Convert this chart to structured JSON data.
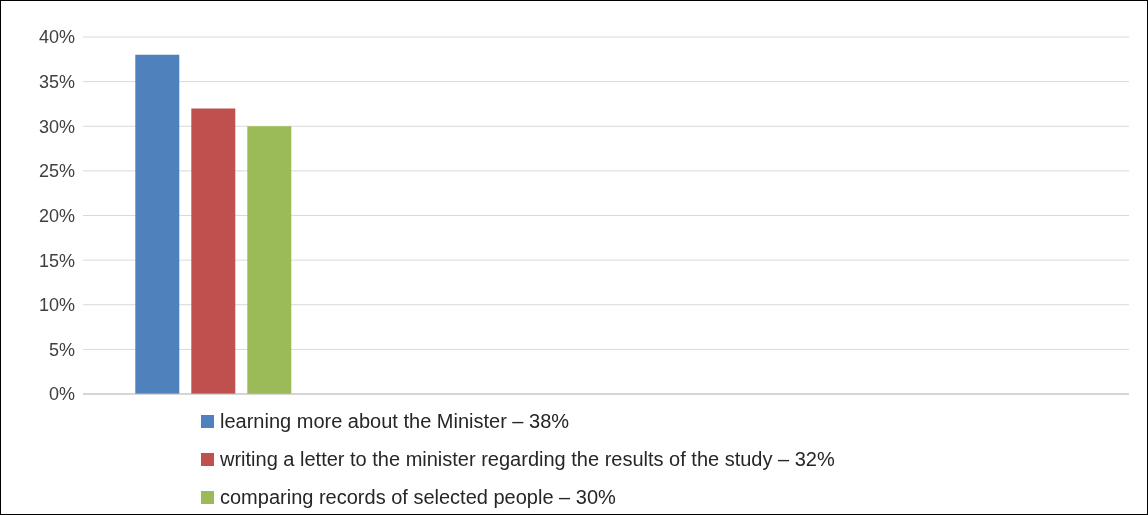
{
  "chart_data": {
    "type": "bar",
    "categories": [
      null,
      null,
      null,
      null
    ],
    "series": [
      {
        "name": "learning more about the Minister – 38%",
        "color": "#4f81bd",
        "values": [
          38,
          null,
          null,
          null
        ]
      },
      {
        "name": "writing a letter to the minister regarding the results of the study – 32%",
        "color": "#c0504d",
        "values": [
          32,
          null,
          null,
          null
        ]
      },
      {
        "name": "comparing records of selected people – 30%",
        "color": "#9bbb59",
        "values": [
          30,
          null,
          null,
          null
        ]
      }
    ],
    "ylim": [
      0,
      40
    ],
    "yticks": [
      {
        "value": 0,
        "label": "0%"
      },
      {
        "value": 5,
        "label": "5%"
      },
      {
        "value": 10,
        "label": "10%"
      },
      {
        "value": 15,
        "label": "15%"
      },
      {
        "value": 20,
        "label": "20%"
      },
      {
        "value": 25,
        "label": "25%"
      },
      {
        "value": 30,
        "label": "30%"
      },
      {
        "value": 35,
        "label": "35%"
      },
      {
        "value": 40,
        "label": "40%"
      }
    ],
    "grid": "y",
    "legend": "bottom",
    "tick_labels": "y"
  }
}
